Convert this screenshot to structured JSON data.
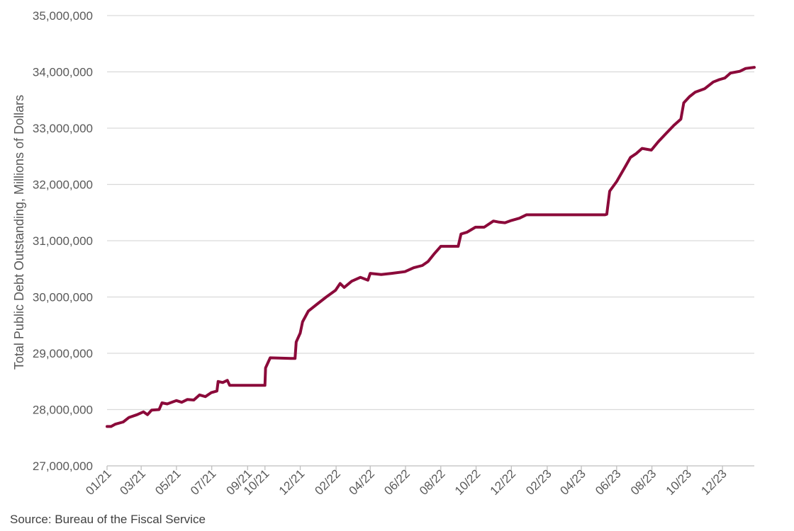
{
  "chart_data": {
    "type": "line",
    "title": "",
    "xlabel": "",
    "ylabel": "Total Public Debt Outstanding, Millions of Dollars",
    "ylim": [
      27000000,
      35000000
    ],
    "yticks": [
      "27,000,000",
      "28,000,000",
      "29,000,000",
      "30,000,000",
      "31,000,000",
      "32,000,000",
      "33,000,000",
      "34,000,000",
      "35,000,000"
    ],
    "ytick_values": [
      27000000,
      28000000,
      29000000,
      30000000,
      31000000,
      32000000,
      33000000,
      34000000,
      35000000
    ],
    "xlim": [
      "2021-01-01",
      "2024-01-25"
    ],
    "xticks": [
      "01/21",
      "03/21",
      "05/21",
      "07/21",
      "09/21",
      "10/21",
      "12/21",
      "02/22",
      "04/22",
      "06/22",
      "08/22",
      "10/22",
      "12/22",
      "02/23",
      "04/23",
      "06/23",
      "08/23",
      "10/23",
      "12/23"
    ],
    "xtick_dates": [
      "2021-01-01",
      "2021-03-01",
      "2021-05-01",
      "2021-07-01",
      "2021-09-01",
      "2021-10-01",
      "2021-12-01",
      "2022-02-01",
      "2022-04-01",
      "2022-06-01",
      "2022-08-01",
      "2022-10-01",
      "2022-12-01",
      "2023-02-01",
      "2023-04-01",
      "2023-06-01",
      "2023-08-01",
      "2023-10-01",
      "2023-12-01"
    ],
    "grid": true,
    "line_color": "#8B0A3A",
    "series": [
      {
        "points": [
          [
            "2021-01-01",
            27700000
          ],
          [
            "2021-01-08",
            27700000
          ],
          [
            "2021-01-15",
            27740000
          ],
          [
            "2021-01-29",
            27780000
          ],
          [
            "2021-02-08",
            27860000
          ],
          [
            "2021-02-22",
            27910000
          ],
          [
            "2021-03-05",
            27960000
          ],
          [
            "2021-03-12",
            27910000
          ],
          [
            "2021-03-19",
            27990000
          ],
          [
            "2021-04-01",
            28000000
          ],
          [
            "2021-04-06",
            28120000
          ],
          [
            "2021-04-15",
            28100000
          ],
          [
            "2021-05-01",
            28160000
          ],
          [
            "2021-05-10",
            28130000
          ],
          [
            "2021-05-20",
            28180000
          ],
          [
            "2021-05-31",
            28170000
          ],
          [
            "2021-06-10",
            28260000
          ],
          [
            "2021-06-20",
            28230000
          ],
          [
            "2021-06-30",
            28300000
          ],
          [
            "2021-07-10",
            28330000
          ],
          [
            "2021-07-12",
            28500000
          ],
          [
            "2021-07-20",
            28480000
          ],
          [
            "2021-07-28",
            28520000
          ],
          [
            "2021-08-01",
            28430000
          ],
          [
            "2021-09-20",
            28430000
          ],
          [
            "2021-10-01",
            28430000
          ],
          [
            "2021-10-02",
            28740000
          ],
          [
            "2021-10-10",
            28920000
          ],
          [
            "2021-11-15",
            28910000
          ],
          [
            "2021-11-22",
            28910000
          ],
          [
            "2021-11-24",
            29200000
          ],
          [
            "2021-12-01",
            29360000
          ],
          [
            "2021-12-05",
            29560000
          ],
          [
            "2021-12-15",
            29750000
          ],
          [
            "2021-12-31",
            29880000
          ],
          [
            "2022-01-15",
            30000000
          ],
          [
            "2022-01-31",
            30120000
          ],
          [
            "2022-02-08",
            30240000
          ],
          [
            "2022-02-15",
            30170000
          ],
          [
            "2022-02-28",
            30280000
          ],
          [
            "2022-03-15",
            30350000
          ],
          [
            "2022-03-28",
            30300000
          ],
          [
            "2022-04-01",
            30420000
          ],
          [
            "2022-04-20",
            30400000
          ],
          [
            "2022-05-08",
            30420000
          ],
          [
            "2022-05-31",
            30450000
          ],
          [
            "2022-06-15",
            30520000
          ],
          [
            "2022-06-30",
            30560000
          ],
          [
            "2022-07-10",
            30630000
          ],
          [
            "2022-07-20",
            30760000
          ],
          [
            "2022-08-01",
            30900000
          ],
          [
            "2022-08-31",
            30900000
          ],
          [
            "2022-09-05",
            31120000
          ],
          [
            "2022-09-15",
            31150000
          ],
          [
            "2022-09-30",
            31240000
          ],
          [
            "2022-10-15",
            31240000
          ],
          [
            "2022-10-31",
            31350000
          ],
          [
            "2022-11-10",
            31330000
          ],
          [
            "2022-11-20",
            31320000
          ],
          [
            "2022-12-01",
            31360000
          ],
          [
            "2022-12-15",
            31400000
          ],
          [
            "2022-12-27",
            31460000
          ],
          [
            "2023-05-12",
            31460000
          ],
          [
            "2023-05-15",
            31470000
          ],
          [
            "2023-05-20",
            31880000
          ],
          [
            "2023-06-01",
            32050000
          ],
          [
            "2023-06-15",
            32300000
          ],
          [
            "2023-06-25",
            32480000
          ],
          [
            "2023-07-05",
            32550000
          ],
          [
            "2023-07-15",
            32640000
          ],
          [
            "2023-07-31",
            32610000
          ],
          [
            "2023-08-12",
            32760000
          ],
          [
            "2023-08-25",
            32900000
          ],
          [
            "2023-09-08",
            33050000
          ],
          [
            "2023-09-20",
            33160000
          ],
          [
            "2023-09-25",
            33450000
          ],
          [
            "2023-10-05",
            33560000
          ],
          [
            "2023-10-15",
            33640000
          ],
          [
            "2023-10-31",
            33700000
          ],
          [
            "2023-11-15",
            33820000
          ],
          [
            "2023-11-25",
            33860000
          ],
          [
            "2023-12-05",
            33890000
          ],
          [
            "2023-12-15",
            33980000
          ],
          [
            "2023-12-31",
            34010000
          ],
          [
            "2024-01-10",
            34060000
          ],
          [
            "2024-01-25",
            34080000
          ]
        ]
      }
    ]
  },
  "source": "Source: Bureau of the Fiscal Service"
}
